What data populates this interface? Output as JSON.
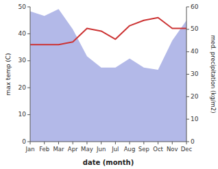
{
  "chart_data": {
    "type": "line",
    "categories": [
      "Jan",
      "Feb",
      "Mar",
      "Apr",
      "May",
      "Jun",
      "Jul",
      "Aug",
      "Sep",
      "Oct",
      "Nov",
      "Dec"
    ],
    "xlabel": "date (month)",
    "ylabel": "max temp (C)",
    "y2label": "med. precipitation (kg/m2)",
    "ylim": [
      0,
      50
    ],
    "yticks": [
      0,
      10,
      20,
      30,
      40,
      50
    ],
    "y2lim": [
      0,
      60
    ],
    "y2ticks": [
      0,
      10,
      20,
      30,
      40,
      50,
      60
    ],
    "grid": false,
    "series": [
      {
        "type": "area",
        "axis": "y2",
        "color": "#b3b9e8",
        "values": [
          58,
          56,
          59,
          50,
          38,
          33,
          33,
          37,
          33,
          32,
          45,
          54
        ]
      },
      {
        "type": "line",
        "color": "#cc3333",
        "values": [
          36,
          36,
          36,
          37,
          42,
          41,
          38,
          43,
          45,
          46,
          42,
          42
        ]
      }
    ]
  }
}
